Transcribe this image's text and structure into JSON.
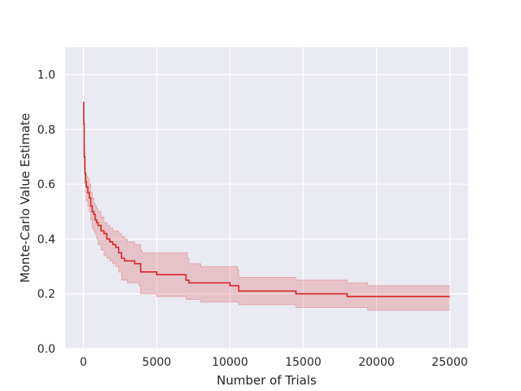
{
  "chart_data": {
    "type": "line",
    "title": "",
    "xlabel": "Number of Trials",
    "ylabel": "Monte-Carlo Value Estimate",
    "xlim": [
      -1250,
      26250
    ],
    "ylim": [
      0.0,
      1.1
    ],
    "x_ticks": [
      0,
      5000,
      10000,
      15000,
      20000,
      25000
    ],
    "x_tick_labels": [
      "0",
      "5000",
      "10000",
      "15000",
      "20000",
      "25000"
    ],
    "y_ticks": [
      0.0,
      0.2,
      0.4,
      0.6,
      0.8,
      1.0
    ],
    "y_tick_labels": [
      "0.0",
      "0.2",
      "0.4",
      "0.6",
      "0.8",
      "1.0"
    ],
    "grid": true,
    "background": "#eaeaf2",
    "grid_color": "#ffffff",
    "line_color": "#d62728",
    "band_color": "#d62728",
    "series": [
      {
        "x": [
          1,
          20,
          50,
          100,
          150,
          200,
          300,
          400,
          500,
          600,
          700,
          800,
          900,
          1000,
          1200,
          1400,
          1600,
          1800,
          2000,
          2200,
          2400,
          2600,
          2800,
          3000,
          3500,
          3800,
          3900,
          4000,
          5000,
          6000,
          7000,
          7100,
          7200,
          8000,
          9000,
          10000,
          10500,
          10600,
          11000,
          12000,
          13000,
          14000,
          14500,
          14600,
          15000,
          17000,
          17900,
          18000,
          19000,
          19300,
          19400,
          20000,
          22000,
          24000,
          25000
        ],
        "y": [
          0.9,
          0.82,
          0.7,
          0.64,
          0.61,
          0.59,
          0.57,
          0.55,
          0.52,
          0.5,
          0.49,
          0.47,
          0.46,
          0.45,
          0.43,
          0.42,
          0.4,
          0.39,
          0.38,
          0.37,
          0.35,
          0.33,
          0.32,
          0.32,
          0.31,
          0.31,
          0.28,
          0.28,
          0.27,
          0.27,
          0.25,
          0.25,
          0.24,
          0.24,
          0.24,
          0.23,
          0.23,
          0.21,
          0.21,
          0.21,
          0.21,
          0.21,
          0.2,
          0.2,
          0.2,
          0.2,
          0.2,
          0.19,
          0.19,
          0.19,
          0.19,
          0.19,
          0.19,
          0.19,
          0.19
        ],
        "lower": [
          0.9,
          0.8,
          0.66,
          0.6,
          0.57,
          0.54,
          0.52,
          0.5,
          0.47,
          0.44,
          0.43,
          0.42,
          0.4,
          0.38,
          0.36,
          0.34,
          0.33,
          0.32,
          0.31,
          0.3,
          0.28,
          0.25,
          0.25,
          0.24,
          0.24,
          0.23,
          0.2,
          0.2,
          0.19,
          0.19,
          0.18,
          0.18,
          0.18,
          0.17,
          0.17,
          0.17,
          0.17,
          0.16,
          0.16,
          0.16,
          0.16,
          0.16,
          0.15,
          0.15,
          0.15,
          0.15,
          0.15,
          0.15,
          0.15,
          0.15,
          0.14,
          0.14,
          0.14,
          0.14,
          0.14
        ],
        "upper": [
          0.9,
          0.84,
          0.74,
          0.66,
          0.64,
          0.63,
          0.62,
          0.6,
          0.57,
          0.55,
          0.53,
          0.52,
          0.51,
          0.5,
          0.48,
          0.46,
          0.45,
          0.44,
          0.43,
          0.43,
          0.42,
          0.41,
          0.4,
          0.39,
          0.38,
          0.38,
          0.36,
          0.35,
          0.35,
          0.35,
          0.35,
          0.33,
          0.31,
          0.3,
          0.3,
          0.3,
          0.29,
          0.26,
          0.26,
          0.26,
          0.26,
          0.26,
          0.25,
          0.25,
          0.25,
          0.25,
          0.25,
          0.24,
          0.24,
          0.24,
          0.23,
          0.23,
          0.23,
          0.23,
          0.23
        ]
      }
    ]
  }
}
